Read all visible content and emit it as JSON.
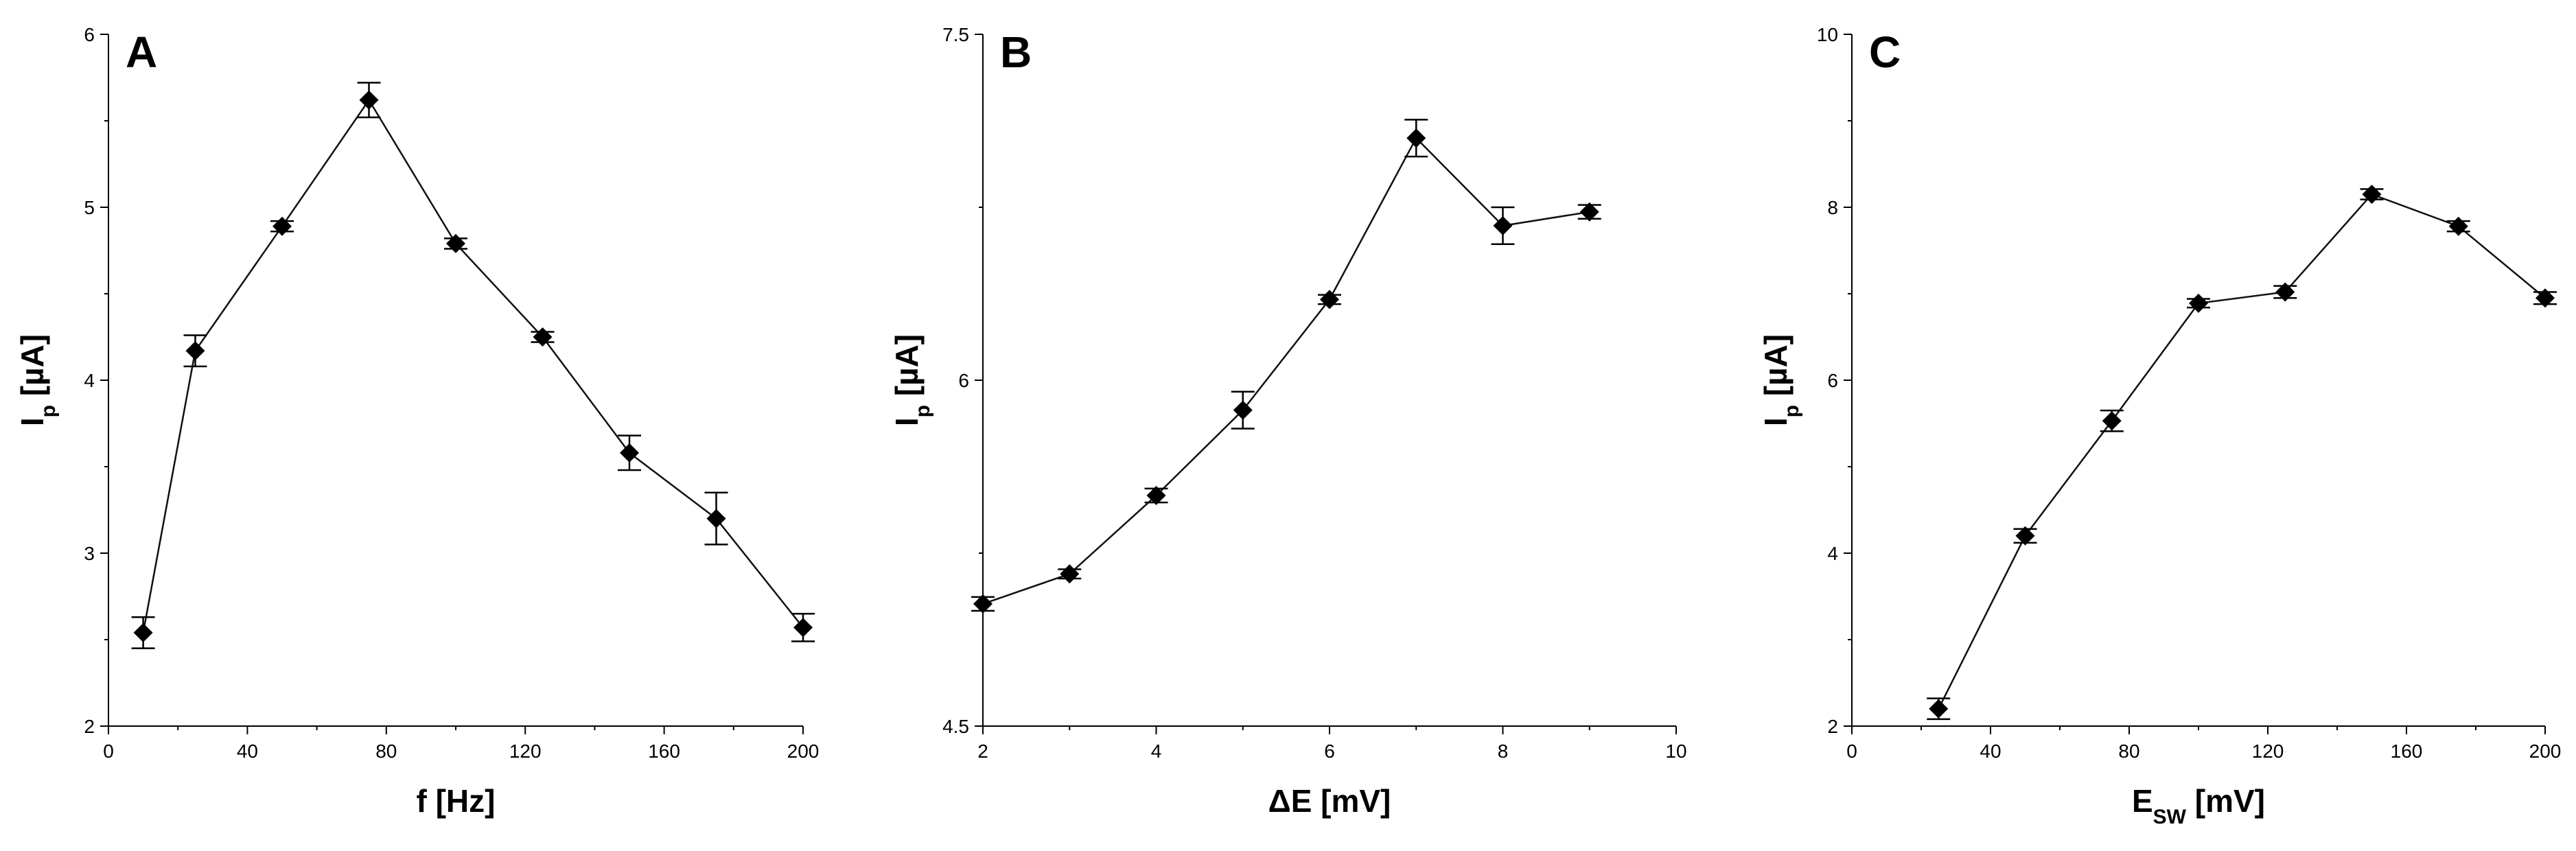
{
  "chart_data": [
    {
      "type": "line",
      "panel": "A",
      "xlabel": "f [Hz]",
      "ylabel": {
        "main": "I",
        "sub": "p",
        "unit": " [µA]"
      },
      "xlim": [
        0,
        200
      ],
      "ylim": [
        2,
        6
      ],
      "xticks": [
        0,
        40,
        80,
        120,
        160,
        200
      ],
      "yticks": [
        2,
        3,
        4,
        5,
        6
      ],
      "x": [
        10,
        25,
        50,
        75,
        100,
        125,
        150,
        175,
        200
      ],
      "y": [
        2.54,
        4.17,
        4.89,
        5.62,
        4.79,
        4.25,
        3.58,
        3.2,
        2.57
      ],
      "err": [
        0.09,
        0.09,
        0.03,
        0.1,
        0.03,
        0.03,
        0.1,
        0.15,
        0.08
      ]
    },
    {
      "type": "line",
      "panel": "B",
      "xlabel": "ΔE [mV]",
      "ylabel": {
        "main": "I",
        "sub": "p",
        "unit": " [µA]"
      },
      "xlim": [
        2,
        10
      ],
      "ylim": [
        4.5,
        7.5
      ],
      "xticks": [
        2,
        4,
        6,
        8,
        10
      ],
      "yticks": [
        4.5,
        6,
        7.5
      ],
      "ytick_labels": [
        "4.5",
        "6",
        "7.5"
      ],
      "x": [
        2,
        3,
        4,
        5,
        6,
        7,
        8,
        9
      ],
      "y": [
        5.03,
        5.16,
        5.5,
        5.87,
        6.35,
        7.05,
        6.67,
        6.73
      ],
      "err": [
        0.03,
        0.02,
        0.03,
        0.08,
        0.02,
        0.08,
        0.08,
        0.03
      ]
    },
    {
      "type": "line",
      "panel": "C",
      "xlabel": {
        "main": "E",
        "sub": "SW",
        "unit": " [mV]"
      },
      "ylabel": {
        "main": "I",
        "sub": "p",
        "unit": " [µA]"
      },
      "xlim": [
        0,
        200
      ],
      "ylim": [
        2,
        10
      ],
      "xticks": [
        0,
        40,
        80,
        120,
        160,
        200
      ],
      "yticks": [
        2,
        4,
        6,
        8,
        10
      ],
      "x": [
        25,
        50,
        75,
        100,
        125,
        150,
        175,
        200
      ],
      "y": [
        2.2,
        4.2,
        5.53,
        6.89,
        7.02,
        8.15,
        7.78,
        6.95
      ],
      "err": [
        0.12,
        0.08,
        0.12,
        0.05,
        0.07,
        0.06,
        0.06,
        0.07
      ]
    }
  ]
}
